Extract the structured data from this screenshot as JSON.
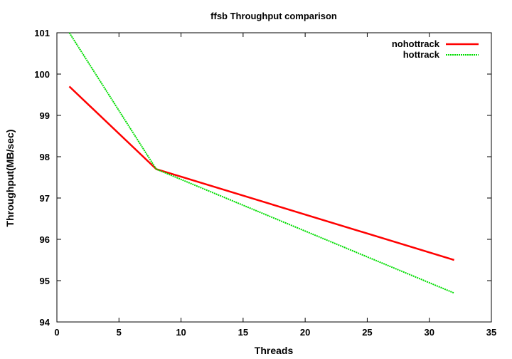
{
  "chart_data": {
    "type": "line",
    "title": "ffsb Throughput comparison",
    "xlabel": "Threads",
    "ylabel": "Throughput(MB/sec)",
    "xlim": [
      0,
      35
    ],
    "ylim": [
      94,
      101
    ],
    "xticks": [
      0,
      5,
      10,
      15,
      20,
      25,
      30,
      35
    ],
    "yticks": [
      94,
      95,
      96,
      97,
      98,
      99,
      100,
      101
    ],
    "grid": false,
    "legend": "top-right",
    "series": [
      {
        "name": "nohottrack",
        "color": "#ff0000",
        "style": "solid",
        "x": [
          1,
          8,
          32
        ],
        "y": [
          99.7,
          97.7,
          95.5
        ]
      },
      {
        "name": "hottrack",
        "color": "#00dd00",
        "style": "dashed",
        "x": [
          1,
          8,
          32
        ],
        "y": [
          101.0,
          97.7,
          94.7
        ]
      }
    ]
  }
}
